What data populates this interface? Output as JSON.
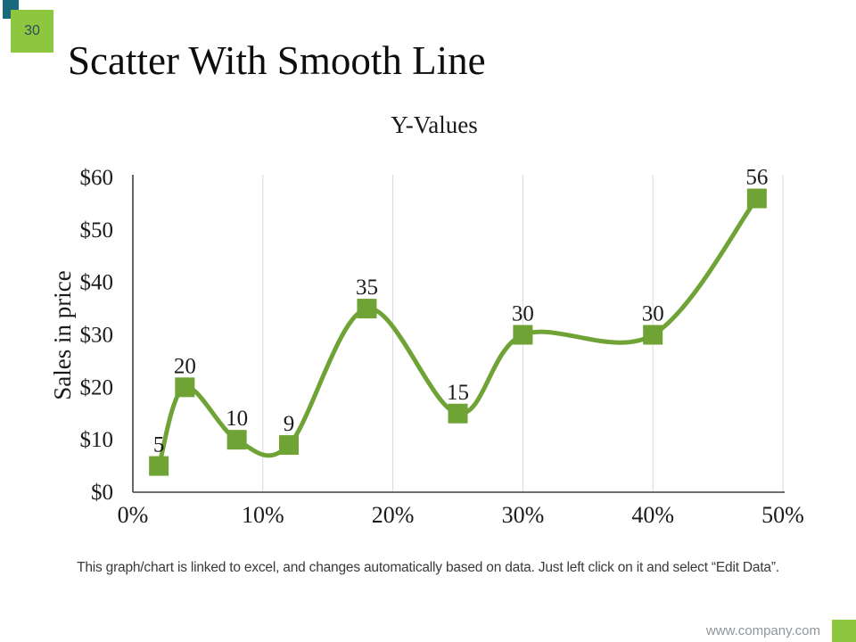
{
  "slide": {
    "number": "30",
    "title": "Scatter With Smooth Line",
    "footer_note": "This graph/chart is linked to excel, and changes automatically based on data. Just left click on it and select “Edit Data”.",
    "website": "www.company.com"
  },
  "colors": {
    "accent_green": "#8dc63f",
    "teal_accent": "#17697b",
    "line_green": "#6fa336",
    "gridline": "#d9d9d9",
    "axis": "#404040",
    "text": "#1a1a1a",
    "note_text": "#3a3a3a",
    "footer_text": "#8f959b",
    "slide_num_text": "#2e4d55"
  },
  "chart_data": {
    "type": "scatter",
    "subtype": "smooth-line-with-square-markers",
    "title": "Y-Values",
    "xlabel": "",
    "ylabel": "Sales in price",
    "x_ticks": [
      "0%",
      "10%",
      "20%",
      "30%",
      "40%",
      "50%"
    ],
    "y_ticks": [
      "$0",
      "$10",
      "$20",
      "$30",
      "$40",
      "$50",
      "$60"
    ],
    "xlim": [
      0,
      50
    ],
    "ylim": [
      0,
      60
    ],
    "grid": "vertical-only",
    "legend": "none",
    "points": [
      {
        "x": 2,
        "y": 5,
        "label": "5"
      },
      {
        "x": 4,
        "y": 20,
        "label": "20"
      },
      {
        "x": 8,
        "y": 10,
        "label": "10"
      },
      {
        "x": 12,
        "y": 9,
        "label": "9"
      },
      {
        "x": 18,
        "y": 35,
        "label": "35"
      },
      {
        "x": 25,
        "y": 15,
        "label": "15"
      },
      {
        "x": 30,
        "y": 30,
        "label": "30"
      },
      {
        "x": 40,
        "y": 30,
        "label": "30"
      },
      {
        "x": 48,
        "y": 56,
        "label": "56"
      }
    ]
  }
}
